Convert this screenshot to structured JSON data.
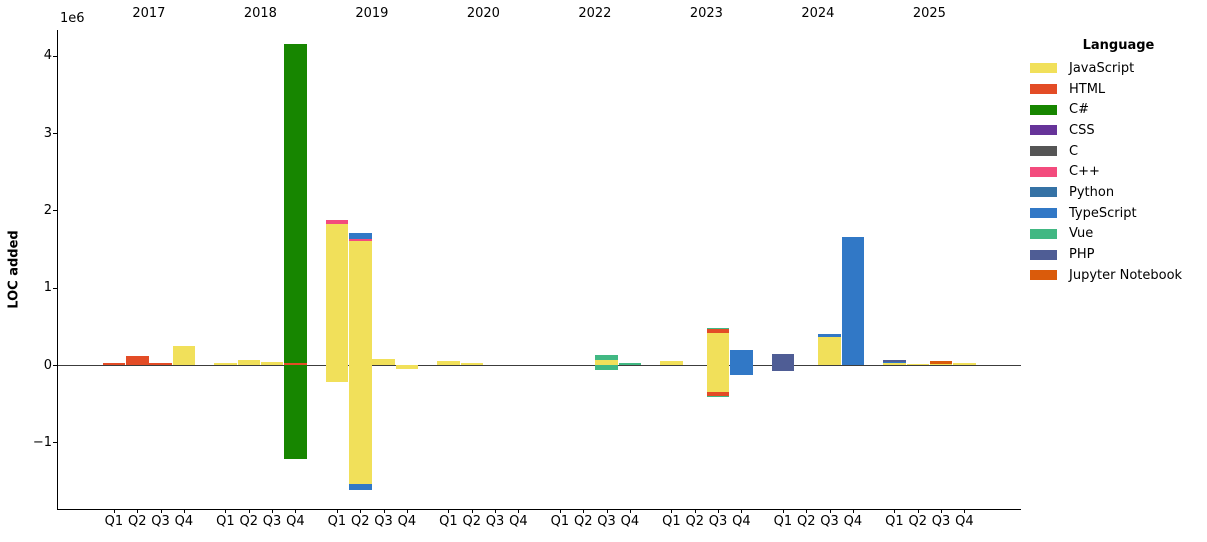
{
  "chart_data": {
    "type": "bar",
    "stacked": true,
    "title": "",
    "legend_title": "Language",
    "ylabel": "LOC added",
    "offset_label": "1e6",
    "unit": "LOC",
    "grid": false,
    "legend_position": "upper right, outside axes",
    "ylim": [
      -1860000,
      4330000
    ],
    "y_ticks": [
      {
        "value": 4000000,
        "label": "4"
      },
      {
        "value": 3000000,
        "label": "3"
      },
      {
        "value": 2000000,
        "label": "2"
      },
      {
        "value": 1000000,
        "label": "1"
      },
      {
        "value": 0,
        "label": "0"
      },
      {
        "value": -1000000,
        "label": "−1"
      }
    ],
    "years": [
      "2017",
      "2018",
      "2019",
      "2020",
      "2022",
      "2023",
      "2024",
      "2025"
    ],
    "quarters": [
      "Q1",
      "Q2",
      "Q3",
      "Q4"
    ],
    "legend": [
      {
        "language": "JavaScript",
        "color": "#f1e05a"
      },
      {
        "language": "HTML",
        "color": "#e34c26"
      },
      {
        "language": "C#",
        "color": "#178600"
      },
      {
        "language": "CSS",
        "color": "#663399"
      },
      {
        "language": "C",
        "color": "#555555"
      },
      {
        "language": "C++",
        "color": "#f34b7d"
      },
      {
        "language": "Python",
        "color": "#3572A5"
      },
      {
        "language": "TypeScript",
        "color": "#3178c6"
      },
      {
        "language": "Vue",
        "color": "#41b883"
      },
      {
        "language": "PHP",
        "color": "#4F5D95"
      },
      {
        "language": "Jupyter Notebook",
        "color": "#DA5B0B"
      }
    ],
    "bars": [
      {
        "year": "2017",
        "quarter": "Q1",
        "segments": [
          {
            "language": "HTML",
            "loc": 30000
          }
        ]
      },
      {
        "year": "2017",
        "quarter": "Q2",
        "segments": [
          {
            "language": "HTML",
            "loc": 120000
          }
        ]
      },
      {
        "year": "2017",
        "quarter": "Q3",
        "segments": [
          {
            "language": "HTML",
            "loc": 25000
          }
        ]
      },
      {
        "year": "2017",
        "quarter": "Q4",
        "segments": [
          {
            "language": "JavaScript",
            "loc": 240000
          }
        ]
      },
      {
        "year": "2018",
        "quarter": "Q1",
        "segments": [
          {
            "language": "JavaScript",
            "loc": 30000
          }
        ]
      },
      {
        "year": "2018",
        "quarter": "Q2",
        "segments": [
          {
            "language": "JavaScript",
            "loc": 60000
          }
        ]
      },
      {
        "year": "2018",
        "quarter": "Q3",
        "segments": [
          {
            "language": "JavaScript",
            "loc": 40000
          }
        ]
      },
      {
        "year": "2018",
        "quarter": "Q4",
        "segments": [
          {
            "language": "HTML",
            "loc": 20000
          },
          {
            "language": "C#",
            "loc": 4130000
          },
          {
            "language": "C#",
            "loc": -1220000
          }
        ]
      },
      {
        "year": "2019",
        "quarter": "Q1",
        "segments": [
          {
            "language": "JavaScript",
            "loc": 1820000
          },
          {
            "language": "C++",
            "loc": 50000
          },
          {
            "language": "JavaScript",
            "loc": -220000
          }
        ]
      },
      {
        "year": "2019",
        "quarter": "Q2",
        "segments": [
          {
            "language": "JavaScript",
            "loc": 1600000
          },
          {
            "language": "C++",
            "loc": 25000
          },
          {
            "language": "TypeScript",
            "loc": 85000
          },
          {
            "language": "JavaScript",
            "loc": -1540000
          },
          {
            "language": "TypeScript",
            "loc": -80000
          }
        ]
      },
      {
        "year": "2019",
        "quarter": "Q3",
        "segments": [
          {
            "language": "JavaScript",
            "loc": 80000
          }
        ]
      },
      {
        "year": "2019",
        "quarter": "Q4",
        "segments": [
          {
            "language": "JavaScript",
            "loc": -50000
          }
        ]
      },
      {
        "year": "2020",
        "quarter": "Q1",
        "segments": [
          {
            "language": "JavaScript",
            "loc": 55000
          }
        ]
      },
      {
        "year": "2020",
        "quarter": "Q2",
        "segments": [
          {
            "language": "JavaScript",
            "loc": 20000
          }
        ]
      },
      {
        "year": "2022",
        "quarter": "Q3",
        "segments": [
          {
            "language": "JavaScript",
            "loc": 65000
          },
          {
            "language": "Vue",
            "loc": 65000
          },
          {
            "language": "Vue",
            "loc": -60000
          }
        ]
      },
      {
        "year": "2022",
        "quarter": "Q4",
        "segments": [
          {
            "language": "Vue",
            "loc": 20000
          }
        ]
      },
      {
        "year": "2023",
        "quarter": "Q1",
        "segments": [
          {
            "language": "JavaScript",
            "loc": 50000
          }
        ]
      },
      {
        "year": "2023",
        "quarter": "Q3",
        "segments": [
          {
            "language": "JavaScript",
            "loc": 410000
          },
          {
            "language": "HTML",
            "loc": 60000
          },
          {
            "language": "Vue",
            "loc": 15000
          },
          {
            "language": "JavaScript",
            "loc": -355000
          },
          {
            "language": "HTML",
            "loc": -45000
          },
          {
            "language": "Vue",
            "loc": -15000
          }
        ]
      },
      {
        "year": "2023",
        "quarter": "Q4",
        "segments": [
          {
            "language": "TypeScript",
            "loc": 190000
          },
          {
            "language": "TypeScript",
            "loc": -130000
          }
        ]
      },
      {
        "year": "2024",
        "quarter": "Q1",
        "segments": [
          {
            "language": "PHP",
            "loc": 140000
          },
          {
            "language": "PHP",
            "loc": -80000
          }
        ]
      },
      {
        "year": "2024",
        "quarter": "Q3",
        "segments": [
          {
            "language": "JavaScript",
            "loc": 360000
          },
          {
            "language": "TypeScript",
            "loc": 35000
          }
        ]
      },
      {
        "year": "2024",
        "quarter": "Q4",
        "segments": [
          {
            "language": "TypeScript",
            "loc": 1650000
          }
        ]
      },
      {
        "year": "2025",
        "quarter": "Q1",
        "segments": [
          {
            "language": "JavaScript",
            "loc": 20000
          },
          {
            "language": "TypeScript",
            "loc": 20000
          },
          {
            "language": "PHP",
            "loc": 30000
          }
        ]
      },
      {
        "year": "2025",
        "quarter": "Q2",
        "segments": [
          {
            "language": "JavaScript",
            "loc": 10000
          }
        ]
      },
      {
        "year": "2025",
        "quarter": "Q3",
        "segments": [
          {
            "language": "JavaScript",
            "loc": 15000
          },
          {
            "language": "Jupyter Notebook",
            "loc": 35000
          }
        ]
      },
      {
        "year": "2025",
        "quarter": "Q4",
        "segments": [
          {
            "language": "JavaScript",
            "loc": 30000
          }
        ]
      }
    ]
  }
}
